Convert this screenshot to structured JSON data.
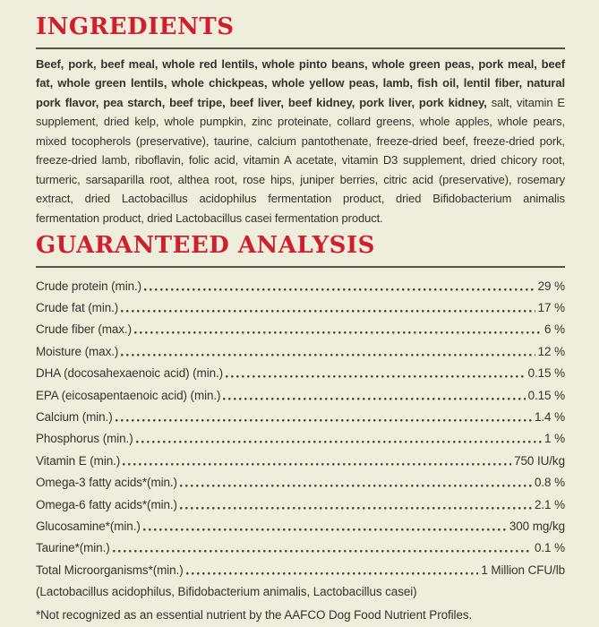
{
  "page": {
    "background_color": "#efeedd",
    "accent_red": "#d01f2b",
    "text_color": "#35342b",
    "rule_color": "#55544a"
  },
  "ingredients": {
    "heading": "INGREDIENTS",
    "bold_text": "Beef, pork, beef meal, whole red lentils, whole pinto beans, whole green peas, pork meal, beef fat, whole green lentils, whole chickpeas, whole yellow peas, lamb, fish oil, lentil fiber, natural pork flavor, pea starch, beef tripe, beef liver, beef kidney, pork liver, pork kidney, ",
    "regular_text": "salt, vitamin E supplement, dried kelp, whole pumpkin, zinc proteinate, collard greens, whole apples, whole pears, mixed tocopherols (preservative), taurine, calcium pantothenate, freeze-dried beef, freeze-dried pork, freeze-dried lamb, riboflavin, folic acid, vitamin A acetate, vitamin D3 supplement, dried chicory root, turmeric, sarsaparilla root, althea root, rose hips, juniper berries, citric acid (preservative), rosemary extract, dried Lactobacillus acidophilus fermentation product, dried Bifidobacterium animalis fermentation product, dried Lactobacillus casei fermentation product."
  },
  "analysis": {
    "heading": "GUARANTEED ANALYSIS",
    "rows": [
      {
        "label": "Crude protein (min.)",
        "value": "29 %"
      },
      {
        "label": "Crude fat (min.)",
        "value": "17 %"
      },
      {
        "label": "Crude fiber (max.)",
        "value": "6 %"
      },
      {
        "label": "Moisture (max.)",
        "value": "12 %"
      },
      {
        "label": "DHA (docosahexaenoic acid) (min.)",
        "value": "0.15 %"
      },
      {
        "label": "EPA (eicosapentaenoic acid) (min.)",
        "value": "0.15 %"
      },
      {
        "label": "Calcium (min.)",
        "value": "1.4 %"
      },
      {
        "label": "Phosphorus (min.)",
        "value": "1 %"
      },
      {
        "label": "Vitamin E (min.)",
        "value": "750 IU/kg"
      },
      {
        "label": "Omega-3 fatty acids*(min.)",
        "value": "0.8 %"
      },
      {
        "label": "Omega-6 fatty acids*(min.)",
        "value": "2.1 %"
      },
      {
        "label": "Glucosamine*(min.)",
        "value": "300 mg/kg"
      },
      {
        "label": "Taurine*(min.)",
        "value": "0.1 %"
      },
      {
        "label": "Total Microorganisms*(min.)",
        "value": "1 Million CFU/lb"
      }
    ],
    "microorganisms_note": "(Lactobacillus acidophilus, Bifidobacterium animalis, Lactobacillus casei)",
    "footnote": "*Not recognized as an essential nutrient by the AAFCO Dog Food Nutrient Profiles."
  }
}
